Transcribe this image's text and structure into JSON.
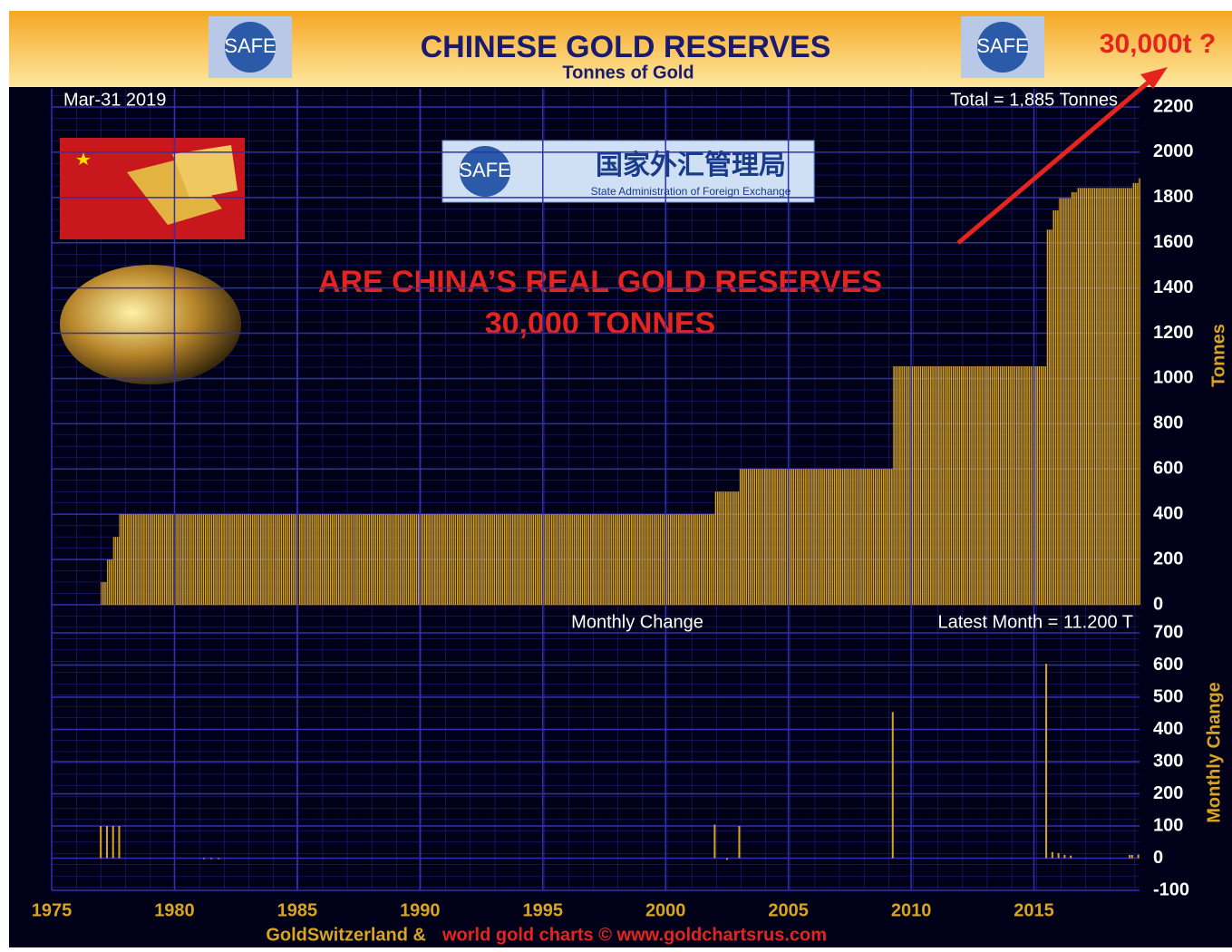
{
  "chart_data": [
    {
      "type": "step-bar",
      "title": "CHINESE GOLD RESERVES",
      "subtitle": "Tonnes of Gold",
      "ylabel": "Tonnes",
      "annotations": [
        "30,000t ?",
        "Mar-31 2019",
        "Total = 1,885 Tonnes",
        "ARE CHINA’S REAL GOLD RESERVES",
        "30,000 TONNES"
      ],
      "x": [
        1977.0,
        1977.25,
        1977.5,
        1977.75,
        2002.0,
        2003.0,
        2009.25,
        2015.5,
        2015.75,
        2016.0,
        2016.5,
        2016.75,
        2019.0,
        2019.25
      ],
      "values": [
        100,
        200,
        300,
        400,
        500,
        600,
        1054,
        1658,
        1743,
        1797,
        1823,
        1842,
        1864,
        1885
      ],
      "color": "#d9a521",
      "xlim": [
        1975,
        2019.3
      ],
      "ylim": [
        0,
        2200
      ],
      "yticks": [
        0,
        200,
        400,
        600,
        800,
        1000,
        1200,
        1400,
        1600,
        1800,
        2000,
        2200
      ],
      "grid": true
    },
    {
      "type": "spike",
      "title": "Monthly Change",
      "ylabel": "Monthly Change",
      "annotations": [
        "Latest Month = 11.200 T"
      ],
      "x": [
        1977.0,
        1977.25,
        1977.5,
        1977.75,
        1981.2,
        1981.5,
        1981.8,
        2002.0,
        2002.5,
        2003.0,
        2009.25,
        2015.5,
        2015.75,
        2016.0,
        2016.25,
        2016.5,
        2018.9,
        2019.0,
        2019.25
      ],
      "values": [
        100,
        100,
        100,
        100,
        -3,
        -3,
        -3,
        104,
        -5,
        100,
        454,
        604,
        19,
        16,
        10,
        8,
        10,
        10,
        11.2
      ],
      "color": "#d9a521",
      "xlim": [
        1975,
        2019.3
      ],
      "xticks": [
        1975,
        1980,
        1985,
        1990,
        1995,
        2000,
        2005,
        2010,
        2015
      ],
      "ylim": [
        -100,
        700
      ],
      "yticks": [
        -100,
        0,
        100,
        200,
        300,
        400,
        500,
        600,
        700
      ],
      "grid": true
    }
  ],
  "logo": {
    "mark": "SAFE",
    "chinese": "国家外汇管理局",
    "english": "State Administration of Foreign Exchange"
  },
  "footer": [
    "GoldSwitzerland &",
    "world gold charts © www.goldchartsrus.com"
  ]
}
